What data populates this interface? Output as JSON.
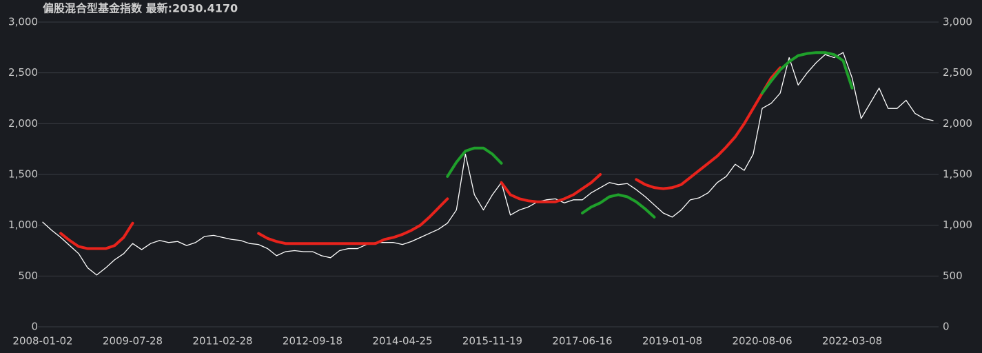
{
  "chart_data": {
    "type": "line",
    "title": "偏股混合型基金指数  最新:2030.4170",
    "categories": [
      "2008-01-02",
      null,
      null,
      null,
      null,
      null,
      null,
      null,
      null,
      null,
      "2009-07-28",
      null,
      null,
      null,
      null,
      null,
      null,
      null,
      null,
      null,
      "2011-02-28",
      null,
      null,
      null,
      null,
      null,
      null,
      null,
      null,
      null,
      "2012-09-18",
      null,
      null,
      null,
      null,
      null,
      null,
      null,
      null,
      null,
      "2014-04-25",
      null,
      null,
      null,
      null,
      null,
      null,
      null,
      null,
      null,
      "2015-11-19",
      null,
      null,
      null,
      null,
      null,
      null,
      null,
      null,
      null,
      "2017-06-16",
      null,
      null,
      null,
      null,
      null,
      null,
      null,
      null,
      null,
      "2019-01-08",
      null,
      null,
      null,
      null,
      null,
      null,
      null,
      null,
      null,
      "2020-08-06",
      null,
      null,
      null,
      null,
      null,
      null,
      null,
      null,
      null,
      "2022-03-08",
      null,
      null,
      null,
      null,
      null,
      null,
      null,
      null,
      null
    ],
    "series": [
      {
        "color": "#ffffff",
        "values": [
          1030,
          950,
          880,
          800,
          720,
          580,
          510,
          580,
          660,
          720,
          820,
          760,
          820,
          850,
          830,
          840,
          800,
          830,
          890,
          900,
          880,
          860,
          850,
          820,
          810,
          770,
          700,
          740,
          750,
          740,
          740,
          700,
          680,
          750,
          770,
          770,
          810,
          830,
          830,
          830,
          810,
          840,
          880,
          920,
          960,
          1020,
          1150,
          1700,
          1300,
          1150,
          1300,
          1420,
          1100,
          1150,
          1180,
          1230,
          1250,
          1260,
          1220,
          1250,
          1250,
          1320,
          1370,
          1420,
          1400,
          1410,
          1350,
          1280,
          1200,
          1120,
          1080,
          1150,
          1250,
          1270,
          1320,
          1420,
          1480,
          1600,
          1540,
          1700,
          2150,
          2200,
          2300,
          2650,
          2380,
          2500,
          2600,
          2680,
          2650,
          2700,
          2450,
          2050,
          2200,
          2350,
          2150,
          2150,
          2230,
          2100,
          2050,
          2030
        ]
      },
      {
        "color": "#e8231c",
        "values": [
          null,
          null,
          920,
          850,
          790,
          770,
          770,
          770,
          800,
          880,
          1020,
          null,
          null,
          null,
          null,
          null,
          null,
          null,
          null,
          null,
          null,
          null,
          null,
          null,
          920,
          870,
          840,
          820,
          820,
          820,
          820,
          820,
          820,
          820,
          820,
          820,
          820,
          820,
          860,
          880,
          910,
          950,
          1000,
          1080,
          1170,
          1260,
          null,
          null,
          null,
          null,
          null,
          1420,
          1300,
          1260,
          1240,
          1230,
          1230,
          1230,
          1260,
          1300,
          1360,
          1420,
          1500,
          null,
          null,
          null,
          1450,
          1400,
          1370,
          1360,
          1370,
          1400,
          1470,
          1540,
          1610,
          1680,
          1770,
          1870,
          2000,
          2150,
          2300,
          2450,
          2550,
          null,
          null,
          null,
          null,
          null,
          null,
          null,
          null,
          null,
          null,
          null,
          null,
          null,
          null,
          null,
          null,
          null
        ]
      },
      {
        "color": "#1fa02b",
        "values": [
          null,
          null,
          null,
          null,
          null,
          null,
          null,
          null,
          null,
          null,
          null,
          null,
          null,
          null,
          null,
          null,
          null,
          null,
          null,
          null,
          null,
          null,
          null,
          null,
          null,
          null,
          null,
          null,
          null,
          null,
          null,
          null,
          null,
          null,
          null,
          null,
          null,
          null,
          null,
          null,
          null,
          null,
          null,
          null,
          null,
          1480,
          1620,
          1730,
          1760,
          1760,
          1700,
          1610,
          null,
          null,
          null,
          null,
          null,
          null,
          null,
          null,
          1120,
          1180,
          1220,
          1280,
          1300,
          1280,
          1230,
          1160,
          1080,
          null,
          null,
          null,
          null,
          null,
          null,
          null,
          null,
          null,
          null,
          null,
          2300,
          2420,
          2530,
          2610,
          2670,
          2690,
          2700,
          2700,
          2680,
          2620,
          2350,
          null,
          null,
          null,
          null,
          null,
          null,
          null,
          null,
          null
        ]
      }
    ],
    "ylim": [
      0,
      3000
    ],
    "yticks": [
      0,
      500,
      {
        "value": 1000,
        "label": "1,000"
      },
      {
        "value": 1500,
        "label": "1,500"
      },
      {
        "value": 2000,
        "label": "2,000"
      },
      {
        "value": 2500,
        "label": "2,500"
      },
      {
        "value": 3000,
        "label": "3,000"
      }
    ],
    "y2lim": [
      0,
      3000
    ],
    "y2ticks": [
      0,
      500,
      {
        "value": 1000,
        "label": "1,000"
      },
      {
        "value": 1500,
        "label": "1,500"
      },
      {
        "value": 2000,
        "label": "2,000"
      },
      {
        "value": 2500,
        "label": "2,500"
      },
      {
        "value": 3000,
        "label": "3,000"
      }
    ],
    "grid": true
  }
}
